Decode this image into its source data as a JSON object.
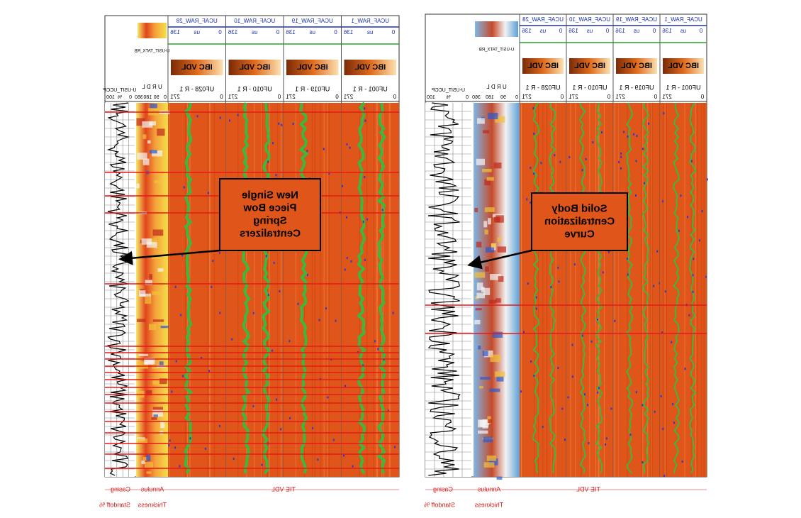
{
  "panels": [
    {
      "curve_track": {
        "name": "U-USIT_UCCP",
        "min": 0,
        "unit": "%",
        "max": 100
      },
      "orientation_track": {
        "name": "U-USIT_TATX_RB",
        "letters": "U R D L",
        "degrees": [
          0,
          90,
          180,
          360
        ]
      },
      "tracks": [
        {
          "name": "UCAF_RAW_28",
          "unit": "us",
          "min": 0,
          "max": 136,
          "label": "IBC VDL",
          "code": "UF028 - R 1",
          "angle": 271
        },
        {
          "name": "UCAF_RAW_10",
          "unit": "us",
          "min": 0,
          "max": 136,
          "label": "IBC VDL",
          "code": "UF010 - R 1",
          "angle": 271
        },
        {
          "name": "UCAF_RAW_19",
          "unit": "us",
          "min": 0,
          "max": 136,
          "label": "IBC VDL",
          "code": "UF019 - R 1",
          "angle": 271
        },
        {
          "name": "UCAF_RAW_1",
          "unit": "us",
          "min": 0,
          "max": 136,
          "label": "IBC VDL",
          "code": "UF001 - R 1",
          "angle": 271
        }
      ],
      "annotation": [
        "New Single",
        "Piece Bow",
        "Spring",
        "Centralizers"
      ],
      "footer": {
        "vdl": "TIE VDL",
        "annulus": "Annulus",
        "casing": "Casing",
        "thickness": "Thickness",
        "standoff": "Standoff %"
      }
    },
    {
      "curve_track": {
        "name": "U-USIT_UCCP",
        "min": 0,
        "unit": "%",
        "max": 100
      },
      "orientation_track": {
        "name": "U-USIT_TATX_RB",
        "letters": "U R D L",
        "degrees": [
          0,
          90,
          180,
          360
        ]
      },
      "tracks": [
        {
          "name": "UCAF_RAW_28",
          "unit": "us",
          "min": 0,
          "max": 136,
          "label": "IBC VDL",
          "code": "UF028 - R 1",
          "angle": 271
        },
        {
          "name": "UCAF_RAW_10",
          "unit": "us",
          "min": 0,
          "max": 136,
          "label": "IBC VDL",
          "code": "UF010 - R 1",
          "angle": 271
        },
        {
          "name": "UCAF_RAW_19",
          "unit": "us",
          "min": 0,
          "max": 136,
          "label": "IBC VDL",
          "code": "UF019 - R 1",
          "angle": 271
        },
        {
          "name": "UCAF_RAW_1",
          "unit": "us",
          "min": 0,
          "max": 136,
          "label": "IBC VDL",
          "code": "UF001 - R 1",
          "angle": 271
        }
      ],
      "annotation": [
        "Solid Body",
        "Centralization",
        "Curve"
      ],
      "footer": {
        "vdl": "TIE VDL",
        "annulus": "Annulus",
        "casing": "Casing",
        "thickness": "Thickness",
        "standoff": "Standoff %"
      }
    }
  ]
}
